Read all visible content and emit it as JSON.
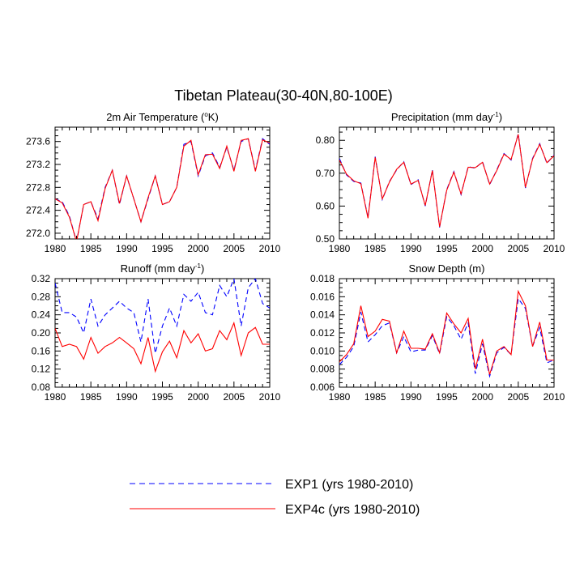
{
  "title": "Tibetan Plateau(30-40N,80-100E)",
  "colors": {
    "exp1": "#0000ff",
    "exp4c": "#ff0000"
  },
  "legend": {
    "exp1": {
      "label": "EXP1 (yrs 1980-2010)",
      "style": "dashed",
      "color": "#0000ff"
    },
    "exp4c": {
      "label": "EXP4c (yrs 1980-2010)",
      "style": "solid",
      "color": "#ff0000"
    }
  },
  "chart_data": [
    {
      "type": "line",
      "title_main": "2m Air Temperature (",
      "title_sup": "o",
      "title_end": "K)",
      "xlim": [
        1980,
        2010
      ],
      "ylim": [
        271.9,
        273.85
      ],
      "xticks": [
        "1980",
        "1985",
        "1990",
        "1995",
        "2000",
        "2005",
        "2010"
      ],
      "yticks": [
        "272.0",
        "272.4",
        "272.8",
        "273.2",
        "273.6"
      ],
      "x": [
        1980,
        1981,
        1982,
        1983,
        1984,
        1985,
        1986,
        1987,
        1988,
        1989,
        1990,
        1991,
        1992,
        1993,
        1994,
        1995,
        1996,
        1997,
        1998,
        1999,
        2000,
        2001,
        2002,
        2003,
        2004,
        2005,
        2006,
        2007,
        2008,
        2009,
        2010
      ],
      "series": [
        {
          "name": "EXP1 (yrs 1980-2010)",
          "values": [
            272.6,
            272.55,
            272.3,
            271.85,
            272.5,
            272.55,
            272.25,
            272.8,
            273.1,
            272.5,
            273.0,
            272.6,
            272.2,
            272.6,
            273.0,
            272.5,
            272.55,
            272.8,
            273.55,
            273.6,
            273.0,
            273.35,
            273.4,
            273.15,
            273.5,
            273.1,
            273.6,
            273.65,
            273.1,
            273.65,
            273.55
          ]
        },
        {
          "name": "EXP4c (yrs 1980-2010)",
          "values": [
            272.6,
            272.53,
            272.28,
            271.85,
            272.5,
            272.55,
            272.22,
            272.78,
            273.1,
            272.52,
            273.0,
            272.6,
            272.2,
            272.62,
            273.0,
            272.5,
            272.55,
            272.8,
            273.52,
            273.62,
            273.02,
            273.37,
            273.38,
            273.13,
            273.52,
            273.08,
            273.62,
            273.65,
            273.08,
            273.63,
            273.57
          ]
        }
      ]
    },
    {
      "type": "line",
      "title_main": "Precipitation (mm day",
      "title_sup": "-1",
      "title_end": ")",
      "xlim": [
        1980,
        2010
      ],
      "ylim": [
        0.5,
        0.84
      ],
      "xticks": [
        "1980",
        "1985",
        "1990",
        "1995",
        "2000",
        "2005",
        "2010"
      ],
      "yticks": [
        "0.50",
        "0.60",
        "0.70",
        "0.80"
      ],
      "x": [
        1980,
        1981,
        1982,
        1983,
        1984,
        1985,
        1986,
        1987,
        1988,
        1989,
        1990,
        1991,
        1992,
        1993,
        1994,
        1995,
        1996,
        1997,
        1998,
        1999,
        2000,
        2001,
        2002,
        2003,
        2004,
        2005,
        2006,
        2007,
        2008,
        2009,
        2010
      ],
      "series": [
        {
          "name": "EXP1 (yrs 1980-2010)",
          "values": [
            0.745,
            0.695,
            0.675,
            0.67,
            0.565,
            0.75,
            0.62,
            0.675,
            0.71,
            0.735,
            0.665,
            0.68,
            0.6,
            0.71,
            0.535,
            0.65,
            0.705,
            0.635,
            0.72,
            0.715,
            0.735,
            0.665,
            0.71,
            0.76,
            0.74,
            0.82,
            0.655,
            0.745,
            0.79,
            0.73,
            0.755
          ]
        },
        {
          "name": "EXP4c (yrs 1980-2010)",
          "values": [
            0.74,
            0.697,
            0.677,
            0.668,
            0.563,
            0.748,
            0.622,
            0.673,
            0.712,
            0.733,
            0.667,
            0.678,
            0.602,
            0.708,
            0.537,
            0.648,
            0.703,
            0.637,
            0.718,
            0.717,
            0.733,
            0.667,
            0.708,
            0.758,
            0.742,
            0.818,
            0.657,
            0.743,
            0.788,
            0.732,
            0.753
          ]
        }
      ]
    },
    {
      "type": "line",
      "title_main": "Runoff (mm day",
      "title_sup": "-1",
      "title_end": ")",
      "xlim": [
        1980,
        2010
      ],
      "ylim": [
        0.08,
        0.32
      ],
      "xticks": [
        "1980",
        "1985",
        "1990",
        "1995",
        "2000",
        "2005",
        "2010"
      ],
      "yticks": [
        "0.08",
        "0.12",
        "0.16",
        "0.20",
        "0.24",
        "0.28",
        "0.32"
      ],
      "x": [
        1980,
        1981,
        1982,
        1983,
        1984,
        1985,
        1986,
        1987,
        1988,
        1989,
        1990,
        1991,
        1992,
        1993,
        1994,
        1995,
        1996,
        1997,
        1998,
        1999,
        2000,
        2001,
        2002,
        2003,
        2004,
        2005,
        2006,
        2007,
        2008,
        2009,
        2010
      ],
      "series": [
        {
          "name": "EXP1 (yrs 1980-2010)",
          "values": [
            0.31,
            0.245,
            0.245,
            0.235,
            0.2,
            0.275,
            0.215,
            0.24,
            0.255,
            0.27,
            0.255,
            0.245,
            0.18,
            0.275,
            0.155,
            0.215,
            0.255,
            0.215,
            0.285,
            0.27,
            0.29,
            0.245,
            0.24,
            0.305,
            0.28,
            0.32,
            0.215,
            0.3,
            0.32,
            0.265,
            0.255
          ]
        },
        {
          "name": "EXP4c (yrs 1980-2010)",
          "values": [
            0.21,
            0.17,
            0.175,
            0.17,
            0.142,
            0.19,
            0.155,
            0.17,
            0.178,
            0.19,
            0.178,
            0.165,
            0.132,
            0.19,
            0.115,
            0.158,
            0.182,
            0.145,
            0.205,
            0.178,
            0.198,
            0.16,
            0.165,
            0.205,
            0.185,
            0.222,
            0.15,
            0.2,
            0.212,
            0.175,
            0.175
          ]
        }
      ]
    },
    {
      "type": "line",
      "title_main": "Snow Depth (m)",
      "title_sup": "",
      "title_end": "",
      "xlim": [
        1980,
        2010
      ],
      "ylim": [
        0.006,
        0.018
      ],
      "xticks": [
        "1980",
        "1985",
        "1990",
        "1995",
        "2000",
        "2005",
        "2010"
      ],
      "yticks": [
        "0.006",
        "0.008",
        "0.010",
        "0.012",
        "0.014",
        "0.016",
        "0.018"
      ],
      "x": [
        1980,
        1981,
        1982,
        1983,
        1984,
        1985,
        1986,
        1987,
        1988,
        1989,
        1990,
        1991,
        1992,
        1993,
        1994,
        1995,
        1996,
        1997,
        1998,
        1999,
        2000,
        2001,
        2002,
        2003,
        2004,
        2005,
        2006,
        2007,
        2008,
        2009,
        2010
      ],
      "series": [
        {
          "name": "EXP1 (yrs 1980-2010)",
          "values": [
            0.0085,
            0.0093,
            0.0105,
            0.0143,
            0.011,
            0.0118,
            0.0128,
            0.0131,
            0.0098,
            0.0116,
            0.0099,
            0.0101,
            0.0101,
            0.0117,
            0.0097,
            0.0138,
            0.0128,
            0.0113,
            0.0131,
            0.0075,
            0.0108,
            0.0072,
            0.0098,
            0.0104,
            0.0096,
            0.0158,
            0.0147,
            0.0105,
            0.0126,
            0.0087,
            0.009
          ]
        },
        {
          "name": "EXP4c (yrs 1980-2010)",
          "values": [
            0.0088,
            0.0096,
            0.0108,
            0.015,
            0.0116,
            0.0122,
            0.0135,
            0.0133,
            0.0098,
            0.0122,
            0.0103,
            0.0103,
            0.0102,
            0.0119,
            0.0098,
            0.0142,
            0.013,
            0.012,
            0.0136,
            0.008,
            0.0113,
            0.0074,
            0.01,
            0.0105,
            0.0096,
            0.0166,
            0.015,
            0.0105,
            0.0132,
            0.009,
            0.009
          ]
        }
      ]
    }
  ]
}
